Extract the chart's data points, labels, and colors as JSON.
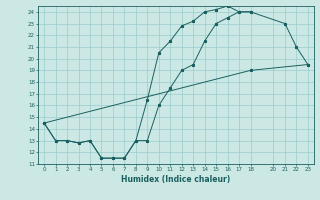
{
  "xlabel": "Humidex (Indice chaleur)",
  "bg_color": "#cce8e4",
  "grid_color": "#99cccc",
  "line_color": "#1a6060",
  "xlim": [
    -0.5,
    23.5
  ],
  "ylim": [
    11,
    24.5
  ],
  "yticks": [
    11,
    12,
    13,
    14,
    15,
    16,
    17,
    18,
    19,
    20,
    21,
    22,
    23,
    24
  ],
  "xticks": [
    0,
    1,
    2,
    3,
    4,
    5,
    6,
    7,
    8,
    9,
    10,
    11,
    12,
    13,
    14,
    15,
    16,
    17,
    18,
    20,
    21,
    22,
    23
  ],
  "line1_x": [
    0,
    1,
    2,
    3,
    4,
    5,
    6,
    7,
    8,
    9,
    10,
    11,
    12,
    13,
    14,
    15,
    16,
    17,
    18
  ],
  "line1_y": [
    14.5,
    13,
    13,
    12.8,
    13,
    11.5,
    11.5,
    11.5,
    13,
    13,
    16,
    17.5,
    19,
    19.5,
    21.5,
    23,
    23.5,
    24,
    24
  ],
  "line2_x": [
    0,
    1,
    2,
    3,
    4,
    5,
    6,
    7,
    8,
    9,
    10,
    11,
    12,
    13,
    14,
    15,
    16,
    17,
    18,
    21,
    22,
    23
  ],
  "line2_y": [
    14.5,
    13,
    13,
    12.8,
    13,
    11.5,
    11.5,
    11.5,
    13,
    16.5,
    20.5,
    21.5,
    22.8,
    23.2,
    24,
    24.2,
    24.5,
    24,
    24,
    23,
    21,
    19.5
  ],
  "line3_x": [
    0,
    18,
    23
  ],
  "line3_y": [
    14.5,
    19,
    19.5
  ]
}
